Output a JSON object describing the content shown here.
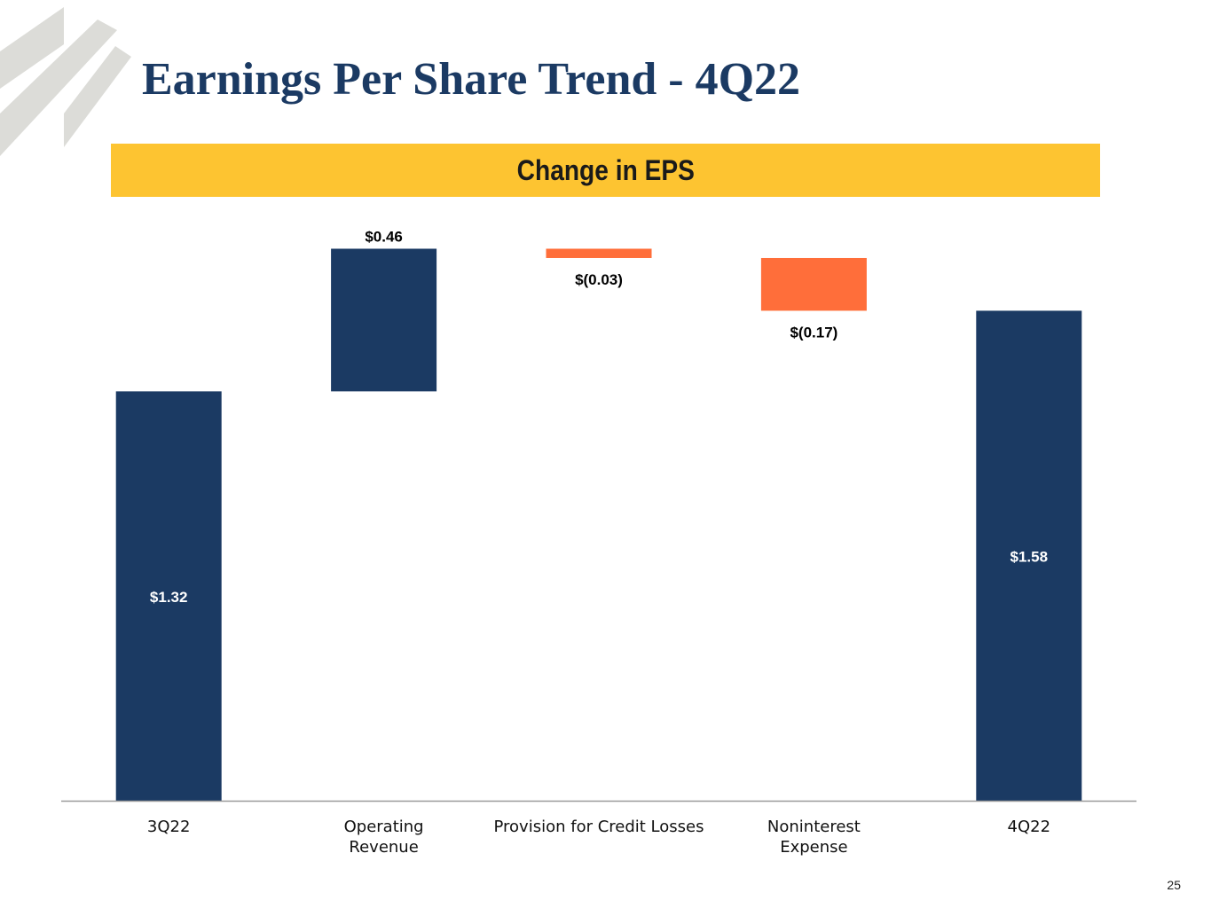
{
  "page": {
    "title": "Earnings Per Share Trend - 4Q22",
    "banner": "Change in EPS",
    "page_number": "25",
    "colors": {
      "title": "#1b3a63",
      "banner": "#fdc431",
      "total_bar": "#1b3a63",
      "increase_bar": "#1b3a63",
      "decrease_bar": "#ff6e3a",
      "axis": "#9a9a9a",
      "logo_stripe": "#dcdcd8"
    }
  },
  "chart_data": {
    "type": "bar",
    "subtype": "waterfall",
    "title": "Change in EPS",
    "xlabel": "",
    "ylabel": "",
    "ylim": [
      0,
      1.81
    ],
    "grid": false,
    "legend": "none",
    "categories": [
      [
        "3Q22"
      ],
      [
        "Operating",
        "Revenue"
      ],
      [
        "Provision for Credit Losses"
      ],
      [
        "Noninterest",
        "Expense"
      ],
      [
        "4Q22"
      ]
    ],
    "bars": [
      {
        "kind": "total",
        "start": 0,
        "end": 1.32,
        "label": "$1.32",
        "label_pos": "inside"
      },
      {
        "kind": "increase",
        "start": 1.32,
        "end": 1.78,
        "label": "$0.46",
        "label_pos": "above"
      },
      {
        "kind": "decrease",
        "start": 1.78,
        "end": 1.75,
        "label": "$(0.03)",
        "label_pos": "below"
      },
      {
        "kind": "decrease",
        "start": 1.75,
        "end": 1.58,
        "label": "$(0.17)",
        "label_pos": "below"
      },
      {
        "kind": "total",
        "start": 0,
        "end": 1.58,
        "label": "$1.58",
        "label_pos": "inside"
      }
    ]
  }
}
